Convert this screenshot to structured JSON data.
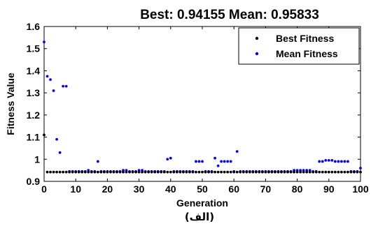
{
  "chart_data": {
    "type": "scatter",
    "title": "Best: 0.94155  Mean: 0.95833",
    "xlabel": "Generation",
    "ylabel": "Fitness Value",
    "caption": "(الف)",
    "xlim": [
      0,
      100
    ],
    "ylim": [
      0.9,
      1.6
    ],
    "xticks": [
      0,
      10,
      20,
      30,
      40,
      50,
      60,
      70,
      80,
      90,
      100
    ],
    "yticks": [
      0.9,
      1,
      1.1,
      1.2,
      1.3,
      1.4,
      1.5,
      1.6
    ],
    "ytick_labels": [
      "0.9",
      "1",
      "1.1",
      "1.2",
      "1.3",
      "1.4",
      "1.5",
      "1.6"
    ],
    "grid": false,
    "legend_position": "top-right",
    "series": [
      {
        "name": "Best Fitness",
        "color": "#000000",
        "x": [
          0,
          1,
          2,
          3,
          4,
          5,
          6,
          7,
          8,
          9,
          10,
          11,
          12,
          13,
          14,
          15,
          16,
          17,
          18,
          19,
          20,
          21,
          22,
          23,
          24,
          25,
          26,
          27,
          28,
          29,
          30,
          31,
          32,
          33,
          34,
          35,
          36,
          37,
          38,
          39,
          40,
          41,
          42,
          43,
          44,
          45,
          46,
          47,
          48,
          49,
          50,
          51,
          52,
          53,
          54,
          55,
          56,
          57,
          58,
          59,
          60,
          61,
          62,
          63,
          64,
          65,
          66,
          67,
          68,
          69,
          70,
          71,
          72,
          73,
          74,
          75,
          76,
          77,
          78,
          79,
          80,
          81,
          82,
          83,
          84,
          85,
          86,
          87,
          88,
          89,
          90,
          91,
          92,
          93,
          94,
          95,
          96,
          97,
          98,
          99,
          100
        ],
        "y": [
          1.11,
          0.942,
          0.942,
          0.942,
          0.942,
          0.942,
          0.942,
          0.942,
          0.942,
          0.942,
          0.942,
          0.942,
          0.942,
          0.942,
          0.942,
          0.942,
          0.942,
          0.942,
          0.942,
          0.942,
          0.942,
          0.942,
          0.942,
          0.942,
          0.942,
          0.942,
          0.942,
          0.942,
          0.942,
          0.942,
          0.942,
          0.942,
          0.942,
          0.942,
          0.942,
          0.942,
          0.942,
          0.942,
          0.942,
          0.942,
          0.942,
          0.942,
          0.942,
          0.942,
          0.942,
          0.942,
          0.942,
          0.942,
          0.942,
          0.942,
          0.942,
          0.942,
          0.942,
          0.942,
          0.942,
          0.942,
          0.942,
          0.942,
          0.942,
          0.942,
          0.942,
          0.942,
          0.942,
          0.942,
          0.942,
          0.942,
          0.942,
          0.942,
          0.942,
          0.942,
          0.942,
          0.942,
          0.942,
          0.942,
          0.942,
          0.942,
          0.942,
          0.942,
          0.942,
          0.942,
          0.942,
          0.942,
          0.942,
          0.942,
          0.942,
          0.942,
          0.942,
          0.942,
          0.942,
          0.942,
          0.942,
          0.942,
          0.942,
          0.942,
          0.942,
          0.942,
          0.942,
          0.942,
          0.942,
          0.942,
          0.942
        ]
      },
      {
        "name": "Mean Fitness",
        "color": "#0000ff",
        "x": [
          0,
          1,
          2,
          3,
          4,
          5,
          6,
          7,
          8,
          9,
          10,
          11,
          12,
          13,
          14,
          15,
          16,
          17,
          18,
          19,
          20,
          21,
          22,
          23,
          24,
          25,
          26,
          27,
          28,
          29,
          30,
          31,
          32,
          33,
          34,
          35,
          36,
          37,
          38,
          39,
          40,
          41,
          42,
          43,
          44,
          45,
          46,
          47,
          48,
          49,
          50,
          51,
          52,
          53,
          54,
          55,
          56,
          57,
          58,
          59,
          60,
          61,
          62,
          63,
          64,
          65,
          66,
          67,
          68,
          69,
          70,
          71,
          72,
          73,
          74,
          75,
          76,
          77,
          78,
          79,
          80,
          81,
          82,
          83,
          84,
          85,
          86,
          87,
          88,
          89,
          90,
          91,
          92,
          93,
          94,
          95,
          96,
          97,
          98,
          99,
          100
        ],
        "y": [
          1.53,
          1.375,
          1.36,
          1.31,
          1.09,
          1.03,
          1.33,
          1.33,
          0.945,
          0.945,
          0.945,
          0.945,
          0.945,
          0.945,
          0.95,
          0.945,
          0.945,
          0.99,
          0.945,
          0.945,
          0.945,
          0.945,
          0.945,
          0.945,
          0.945,
          0.95,
          0.95,
          0.945,
          0.945,
          0.945,
          0.95,
          0.95,
          0.945,
          0.945,
          0.945,
          0.945,
          0.945,
          0.945,
          0.945,
          1.0,
          1.005,
          0.945,
          0.945,
          0.945,
          0.945,
          0.945,
          0.945,
          0.945,
          0.99,
          0.99,
          0.99,
          0.945,
          0.945,
          0.945,
          1.005,
          0.97,
          0.99,
          0.99,
          0.99,
          0.99,
          0.945,
          1.035,
          0.945,
          0.945,
          0.945,
          0.945,
          0.945,
          0.945,
          0.945,
          0.945,
          0.945,
          0.945,
          0.945,
          0.945,
          0.945,
          0.945,
          0.945,
          0.945,
          0.945,
          0.95,
          0.95,
          0.95,
          0.95,
          0.95,
          0.95,
          0.945,
          0.945,
          0.99,
          0.99,
          0.995,
          0.995,
          0.995,
          0.99,
          0.99,
          0.99,
          0.99,
          0.99,
          0.945,
          0.945,
          0.945,
          0.96
        ]
      }
    ]
  }
}
